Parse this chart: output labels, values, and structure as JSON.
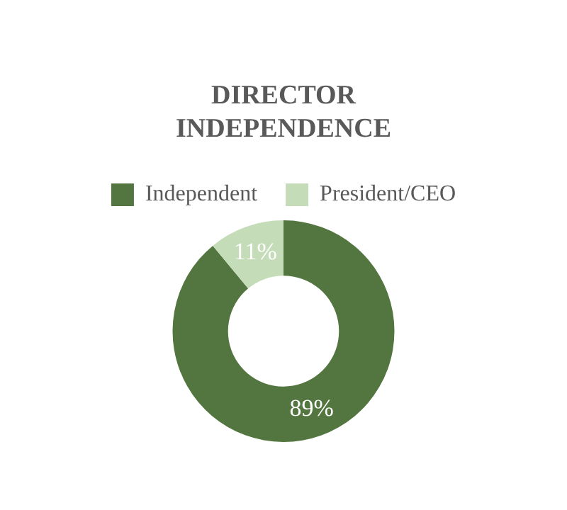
{
  "chart_data": {
    "type": "donut",
    "title": "DIRECTOR INDEPENDENCE",
    "categories": [
      "Independent",
      "President/CEO"
    ],
    "values": [
      89,
      11
    ],
    "colors": [
      "#537640",
      "#c5dcb9"
    ],
    "value_labels": [
      "89%",
      "11%"
    ],
    "legend": "top"
  }
}
